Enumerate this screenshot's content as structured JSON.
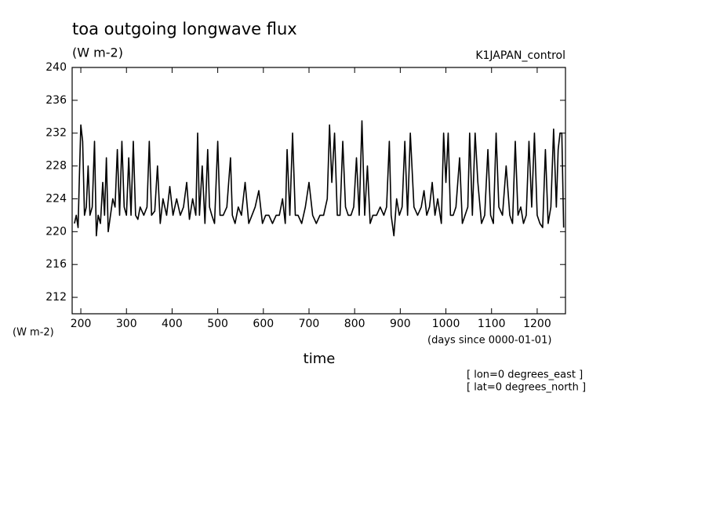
{
  "chart_data": {
    "type": "line",
    "title": "toa outgoing longwave flux",
    "y_units": "(W m-2)",
    "y_axis_label": "(W m-2)",
    "run_label": "K1JAPAN_control",
    "x_axis_units": "(days since 0000-01-01)",
    "x_axis_label": "time",
    "annotations": [
      "[ lon=0 degrees_east ]",
      "[ lat=0 degrees_north ]"
    ],
    "xlim": [
      181,
      1262
    ],
    "ylim": [
      210,
      240
    ],
    "xticks": [
      200,
      300,
      400,
      500,
      600,
      700,
      800,
      900,
      1000,
      1100,
      1200
    ],
    "yticks": [
      212,
      216,
      220,
      224,
      228,
      232,
      236,
      240
    ],
    "color": "#000000",
    "x": [
      186,
      190,
      194,
      197,
      200,
      204,
      208,
      212,
      216,
      220,
      225,
      230,
      234,
      238,
      243,
      248,
      252,
      256,
      260,
      265,
      270,
      275,
      280,
      285,
      290,
      295,
      300,
      305,
      310,
      315,
      320,
      325,
      330,
      338,
      345,
      350,
      355,
      362,
      368,
      374,
      380,
      388,
      395,
      402,
      410,
      418,
      425,
      432,
      438,
      445,
      452,
      456,
      460,
      466,
      472,
      478,
      482,
      487,
      493,
      500,
      505,
      512,
      520,
      528,
      532,
      538,
      545,
      552,
      560,
      568,
      575,
      582,
      590,
      598,
      605,
      612,
      620,
      628,
      635,
      642,
      648,
      652,
      658,
      664,
      670,
      676,
      684,
      692,
      700,
      708,
      716,
      724,
      732,
      740,
      745,
      750,
      756,
      762,
      768,
      774,
      780,
      786,
      792,
      798,
      804,
      810,
      816,
      822,
      828,
      834,
      840,
      848,
      856,
      864,
      870,
      876,
      880,
      886,
      892,
      898,
      904,
      910,
      916,
      922,
      930,
      938,
      946,
      952,
      958,
      964,
      970,
      976,
      982,
      990,
      995,
      1000,
      1005,
      1010,
      1016,
      1022,
      1030,
      1036,
      1042,
      1048,
      1052,
      1058,
      1064,
      1070,
      1078,
      1085,
      1092,
      1098,
      1104,
      1110,
      1116,
      1124,
      1132,
      1140,
      1146,
      1152,
      1158,
      1164,
      1170,
      1176,
      1182,
      1188,
      1194,
      1200,
      1206,
      1212,
      1218,
      1224,
      1230,
      1236,
      1242,
      1246,
      1250,
      1254,
      1258
    ],
    "values": [
      221,
      222,
      220.5,
      227,
      233,
      231,
      222,
      223,
      228,
      222,
      223,
      231,
      219.5,
      222,
      221,
      226,
      222,
      229,
      220,
      222,
      224,
      223,
      230,
      222,
      231,
      223,
      222,
      229,
      222,
      231,
      222,
      221.5,
      223,
      222,
      223,
      231,
      222,
      222.5,
      228,
      221,
      224,
      222,
      225.5,
      222,
      224,
      222,
      223,
      226,
      221.5,
      224,
      222,
      232,
      222,
      228,
      221,
      230,
      223,
      222,
      221,
      231,
      222,
      222,
      223,
      229,
      222,
      221,
      223,
      222,
      226,
      221,
      222,
      223,
      225,
      221,
      222,
      222,
      221,
      222,
      222,
      224,
      221,
      230,
      222,
      232,
      222,
      222,
      221,
      223,
      226,
      222,
      221,
      222,
      222,
      224,
      233,
      226,
      232,
      222,
      222,
      231,
      223,
      222,
      222,
      223,
      229,
      222,
      233.5,
      222,
      228,
      221,
      222,
      222,
      223,
      222,
      223,
      231,
      222,
      219.5,
      224,
      222,
      223,
      231,
      222,
      232,
      223,
      222,
      223,
      225,
      222,
      223,
      226,
      222,
      224,
      221,
      232,
      226,
      232,
      222,
      222,
      223,
      229,
      221,
      222,
      223,
      232,
      222,
      232,
      226,
      221,
      222,
      230,
      222,
      221,
      232,
      223,
      222,
      228,
      222,
      221,
      231,
      222,
      223,
      221,
      222,
      231,
      223,
      232,
      222,
      221,
      220.5,
      230,
      221,
      223,
      232.5,
      223,
      230,
      232,
      232,
      220.5
    ]
  }
}
